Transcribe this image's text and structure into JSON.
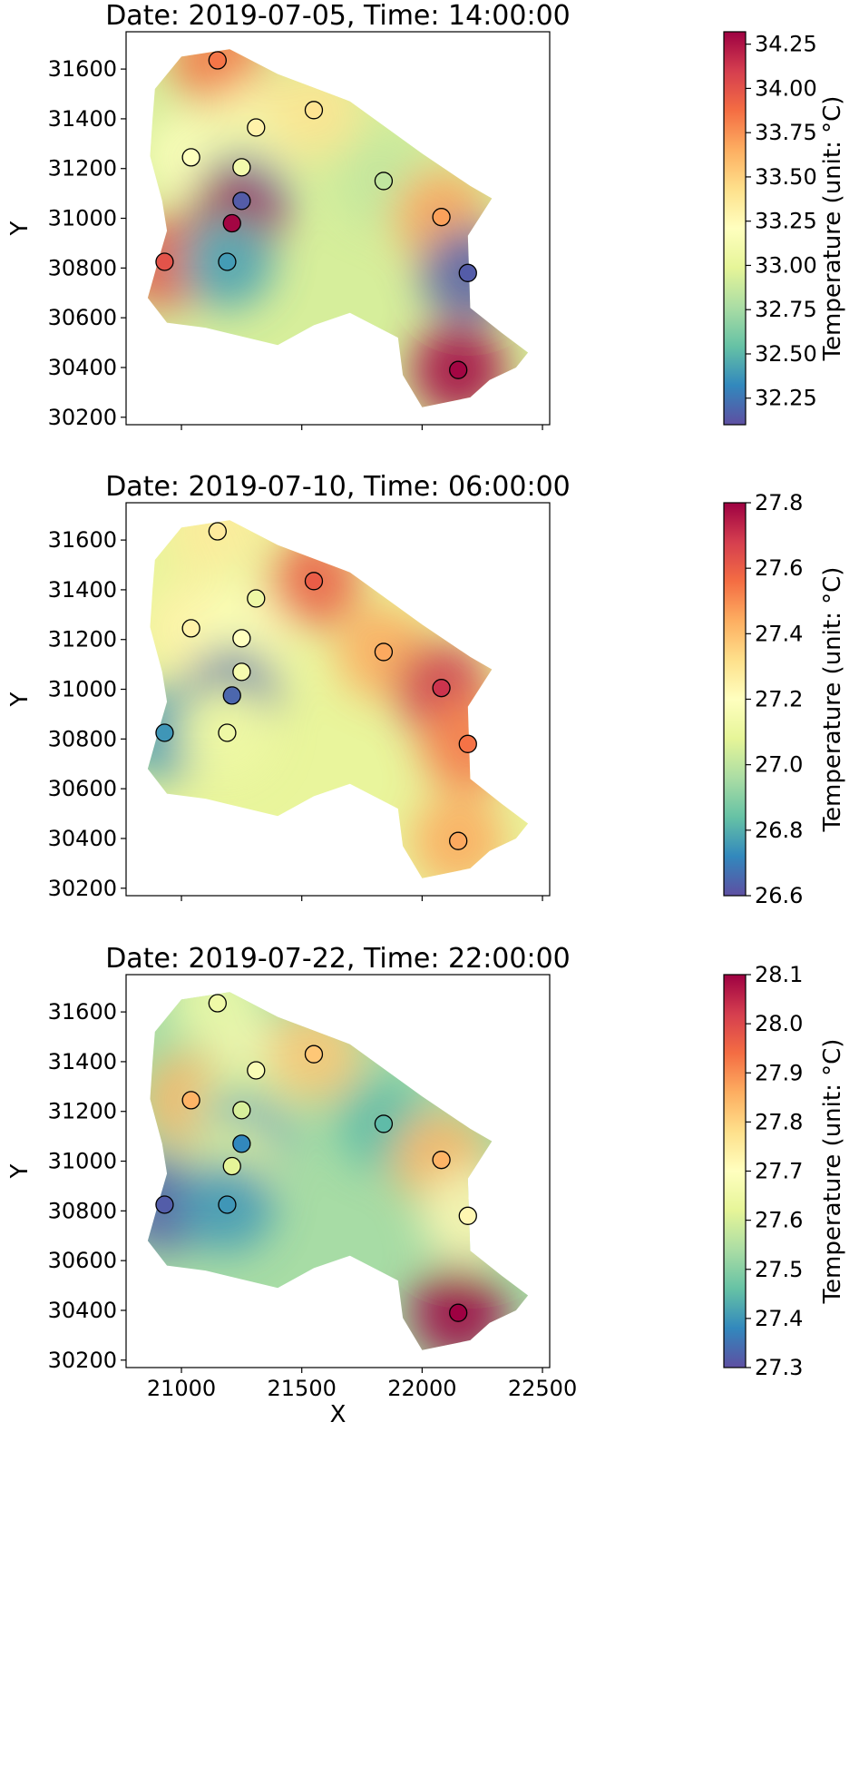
{
  "figure": {
    "xlabel": "X",
    "ylabel": "Y",
    "xlim": [
      20770,
      22530
    ],
    "ylim": [
      30170,
      31750
    ],
    "xticks": [
      21000,
      21500,
      22000,
      22500
    ],
    "yticks": [
      30200,
      30400,
      30600,
      30800,
      31000,
      31200,
      31400,
      31600
    ],
    "colormap": [
      "#5e4fa2",
      "#3288bd",
      "#66c2a5",
      "#abdda4",
      "#e6f598",
      "#ffffbf",
      "#fee08b",
      "#fdae61",
      "#f46d43",
      "#d53e4f",
      "#9e0142"
    ]
  },
  "chart_data": [
    {
      "type": "heatmap",
      "title": "Date: 2019-07-05, Time: 14:00:00",
      "colorbar_label": "Temperature (unit: °C)",
      "vmin": 32.1,
      "vmax": 34.32,
      "cbar_ticks": [
        "32.25",
        "32.50",
        "32.75",
        "33.00",
        "33.25",
        "33.50",
        "33.75",
        "34.00",
        "34.25"
      ],
      "field_bg": "#d6ee9b",
      "stations": [
        {
          "x": 21150,
          "y": 31635,
          "t": 33.85
        },
        {
          "x": 21310,
          "y": 31365,
          "t": 33.3
        },
        {
          "x": 21550,
          "y": 31435,
          "t": 33.4
        },
        {
          "x": 21040,
          "y": 31245,
          "t": 33.2
        },
        {
          "x": 21250,
          "y": 31205,
          "t": 33.1
        },
        {
          "x": 21840,
          "y": 31150,
          "t": 32.85
        },
        {
          "x": 21250,
          "y": 31070,
          "t": 32.15
        },
        {
          "x": 22080,
          "y": 31005,
          "t": 33.7
        },
        {
          "x": 21210,
          "y": 30980,
          "t": 34.3
        },
        {
          "x": 20930,
          "y": 30825,
          "t": 34.0
        },
        {
          "x": 21190,
          "y": 30825,
          "t": 32.4
        },
        {
          "x": 22190,
          "y": 30780,
          "t": 32.15
        },
        {
          "x": 22150,
          "y": 30390,
          "t": 34.3
        }
      ]
    },
    {
      "type": "heatmap",
      "title": "Date: 2019-07-10, Time: 06:00:00",
      "colorbar_label": "Temperature (unit: °C)",
      "vmin": 26.6,
      "vmax": 27.8,
      "cbar_ticks": [
        "26.6",
        "26.8",
        "27.0",
        "27.2",
        "27.4",
        "27.6",
        "27.8"
      ],
      "field_bg": "#e9f59c",
      "stations": [
        {
          "x": 21150,
          "y": 31635,
          "t": 27.28
        },
        {
          "x": 21310,
          "y": 31365,
          "t": 27.12
        },
        {
          "x": 21550,
          "y": 31435,
          "t": 27.6
        },
        {
          "x": 21040,
          "y": 31245,
          "t": 27.25
        },
        {
          "x": 21250,
          "y": 31205,
          "t": 27.2
        },
        {
          "x": 21840,
          "y": 31150,
          "t": 27.45
        },
        {
          "x": 21250,
          "y": 31070,
          "t": 27.15
        },
        {
          "x": 22080,
          "y": 31005,
          "t": 27.7
        },
        {
          "x": 21210,
          "y": 30975,
          "t": 26.65
        },
        {
          "x": 20930,
          "y": 30825,
          "t": 26.75
        },
        {
          "x": 21190,
          "y": 30825,
          "t": 27.12
        },
        {
          "x": 22190,
          "y": 30780,
          "t": 27.55
        },
        {
          "x": 22150,
          "y": 30390,
          "t": 27.45
        }
      ]
    },
    {
      "type": "heatmap",
      "title": "Date: 2019-07-22, Time: 22:00:00",
      "colorbar_label": "Temperature (unit: °C)",
      "vmin": 27.3,
      "vmax": 28.1,
      "cbar_ticks": [
        "27.3",
        "27.4",
        "27.5",
        "27.6",
        "27.7",
        "27.8",
        "27.9",
        "28.0",
        "28.1"
      ],
      "field_bg": "#a7dca5",
      "stations": [
        {
          "x": 21150,
          "y": 31635,
          "t": 27.65
        },
        {
          "x": 21310,
          "y": 31365,
          "t": 27.68
        },
        {
          "x": 21550,
          "y": 31430,
          "t": 27.82
        },
        {
          "x": 21040,
          "y": 31245,
          "t": 27.85
        },
        {
          "x": 21250,
          "y": 31205,
          "t": 27.6
        },
        {
          "x": 21840,
          "y": 31150,
          "t": 27.45
        },
        {
          "x": 21250,
          "y": 31070,
          "t": 27.38
        },
        {
          "x": 22080,
          "y": 31005,
          "t": 27.85
        },
        {
          "x": 21210,
          "y": 30980,
          "t": 27.62
        },
        {
          "x": 20930,
          "y": 30825,
          "t": 27.32
        },
        {
          "x": 21190,
          "y": 30825,
          "t": 27.4
        },
        {
          "x": 22190,
          "y": 30780,
          "t": 27.72
        },
        {
          "x": 22150,
          "y": 30390,
          "t": 28.1
        }
      ]
    }
  ]
}
